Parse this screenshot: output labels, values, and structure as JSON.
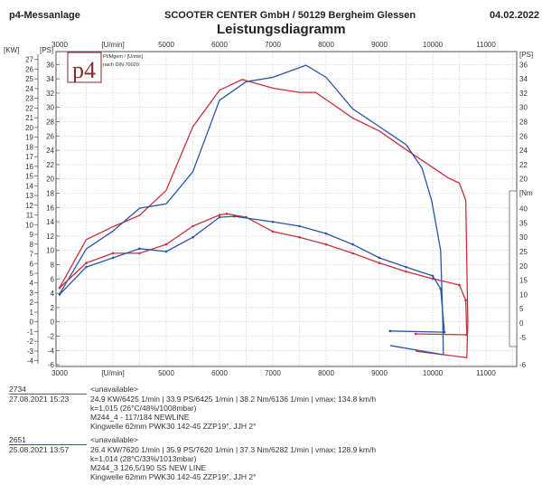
{
  "header": {
    "left": "p4-Messanlage",
    "center": "SCOOTER CENTER GmbH / 50129 Bergheim Glessen",
    "date": "04.02.2022",
    "title": "Leistungsdiagramm"
  },
  "logo": {
    "text": "p4",
    "legend_line1": "Pf/Mgem / [U/min]",
    "legend_line2": "nach DIN 70020"
  },
  "colors": {
    "run_2734": "#c8303f",
    "run_2651": "#2a55a8",
    "grid": "#c8c8c8"
  },
  "chart_data": {
    "type": "line",
    "title": "Leistungsdiagramm",
    "xlabel": "[U/min]",
    "x_ticks": [
      "3000",
      "[U/min]",
      "5000",
      "6000",
      "7000",
      "8000",
      "9000",
      "10000",
      "11000"
    ],
    "xlim": [
      3000,
      11500
    ],
    "y_left_kw": {
      "label": "[KW]",
      "ticks": [
        "27",
        "26",
        "25",
        "24",
        "23",
        "22",
        "21",
        "20",
        "19",
        "18",
        "17",
        "16",
        "15",
        "14",
        "13",
        "12",
        "11",
        "10",
        "9",
        "8",
        "7",
        "6",
        "5",
        "4",
        "3",
        "2",
        "1",
        "0",
        "-1",
        "-2",
        "-3",
        "-4"
      ]
    },
    "y_left_ps": {
      "label": "[PS]",
      "ticks": [
        "36",
        "34",
        "32",
        "30",
        "28",
        "26",
        "24",
        "22",
        "20",
        "18",
        "16",
        "14",
        "12",
        "10",
        "8",
        "6",
        "4",
        "2",
        "0",
        "-2",
        "-4",
        "-6"
      ],
      "ylim": [
        -6,
        37
      ]
    },
    "y_right_ps": {
      "label": "[PS]",
      "ticks": [
        "36",
        "34",
        "32",
        "30",
        "28",
        "26",
        "24",
        "22",
        "20"
      ],
      "bottom_tick": "-6"
    },
    "y_right_nm": {
      "label": "[Nm",
      "ticks": [
        "40",
        "35",
        "30",
        "25",
        "20",
        "15",
        "10",
        "5",
        "0",
        "-5"
      ]
    },
    "series": [
      {
        "name": "2734 power [PS]",
        "color": "#c8303f",
        "axis": "ps",
        "x": [
          3000,
          3500,
          4000,
          4500,
          5000,
          5500,
          6000,
          6425,
          7000,
          7500,
          7800,
          8000,
          8500,
          9000,
          9500,
          10000,
          10300,
          10500,
          10620,
          10660,
          10640,
          9680
        ],
        "y": [
          4.8,
          11.5,
          13.3,
          14.9,
          18.4,
          27.3,
          32.4,
          33.9,
          32.7,
          32.1,
          32.1,
          31.1,
          28.5,
          26.7,
          24.1,
          21.6,
          20.1,
          19.4,
          17,
          0,
          -5,
          -4.1
        ]
      },
      {
        "name": "2651 power [PS]",
        "color": "#2a55a8",
        "axis": "ps",
        "x": [
          3000,
          3500,
          4000,
          4500,
          5000,
          5500,
          6000,
          6500,
          7000,
          7620,
          8000,
          8500,
          9000,
          9500,
          9800,
          9980,
          10150,
          10190,
          10200,
          9200
        ],
        "y": [
          3.9,
          10.2,
          12.7,
          15.9,
          16.5,
          21,
          31,
          33.6,
          34.2,
          35.9,
          34.2,
          29.8,
          27.3,
          24.8,
          21.5,
          17,
          10,
          0,
          -4.6,
          -3.3
        ]
      },
      {
        "name": "2734 torque [Nm]",
        "color": "#c8303f",
        "axis": "nm",
        "markers": true,
        "x": [
          3000,
          3500,
          4000,
          4500,
          5000,
          5500,
          6000,
          6136,
          6500,
          7000,
          7500,
          8000,
          8500,
          9000,
          9500,
          10000,
          10500,
          10620,
          10640,
          9680
        ],
        "y": [
          12.3,
          21,
          24.4,
          24.4,
          27.5,
          33.9,
          37.8,
          38.2,
          37,
          32,
          30,
          27.5,
          24.4,
          21,
          18,
          15.5,
          13.3,
          8,
          -4.1,
          -3.8
        ]
      },
      {
        "name": "2651 torque [Nm]",
        "color": "#2a55a8",
        "axis": "nm",
        "markers": true,
        "x": [
          3000,
          3500,
          4000,
          4500,
          5000,
          5500,
          6000,
          6282,
          7000,
          7500,
          8000,
          8500,
          9000,
          9500,
          10000,
          10150,
          10220,
          9200
        ],
        "y": [
          10,
          19.6,
          22.8,
          26,
          25,
          30,
          37,
          37.3,
          35.4,
          33.9,
          31.3,
          27.5,
          22.8,
          19.6,
          16.5,
          12,
          -3.2,
          -2.8
        ]
      }
    ]
  },
  "runs": [
    {
      "id": "2734",
      "datetime": "27.08.2021  15:23",
      "name": "<unavailable>",
      "summary": "24.9 KW/6425 1/min  |  33.9 PS/6425 1/min  |  38.2 Nm/6136 1/min  |  vmax: 134.8 km/h",
      "conditions": "k=1,015 (26°C/48%/1008mbar)",
      "engine": "M244_4 - 117/184 NEWLINE",
      "setup": "Kingwelle 62mm PWK30 142-45 ZZP19°, JJH 2°"
    },
    {
      "id": "2651",
      "datetime": "25.08.2021  13:57",
      "name": "<unavailable>",
      "summary": "26.4 KW/7620 1/min  |  35.9 PS/7620 1/min  |  37.3 Nm/6282 1/min  |  vmax: 128.9 km/h",
      "conditions": "k=1,014 (28°C/33%/1013mbar)",
      "engine": "M244_3 126,5/190 SS NEW LINE",
      "setup": "Kingwelle 62mm PWK30 142-45 ZZP19°, JJH 2°"
    }
  ]
}
